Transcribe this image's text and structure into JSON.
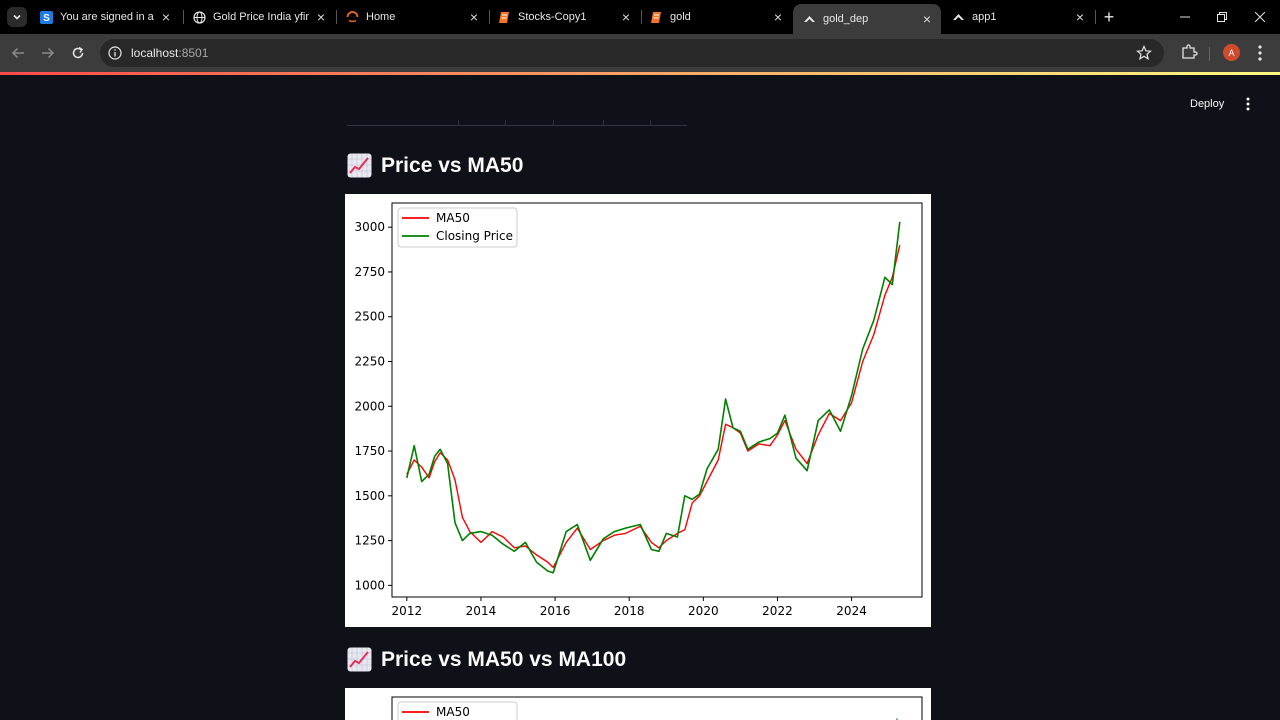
{
  "browser": {
    "tabs": [
      {
        "title": "You are signed in as",
        "favicon": "s-square-icon",
        "active": false
      },
      {
        "title": "Gold Price India yfina",
        "favicon": "globe-icon",
        "active": false
      },
      {
        "title": "Home",
        "favicon": "arc-icon",
        "active": false
      },
      {
        "title": "Stocks-Copy1",
        "favicon": "notebook-icon",
        "active": false
      },
      {
        "title": "gold",
        "favicon": "notebook-icon",
        "active": false
      },
      {
        "title": "gold_dep",
        "favicon": "streamlit-icon",
        "active": true
      },
      {
        "title": "app1",
        "favicon": "streamlit-icon",
        "active": false
      }
    ],
    "url_host": "localhost",
    "url_port": ":8501",
    "profile_initial": "A"
  },
  "app": {
    "deploy_label": "Deploy",
    "sections": [
      {
        "heading": "Price vs MA50"
      },
      {
        "heading": "Price vs MA50 vs MA100"
      }
    ]
  },
  "chart_data": [
    {
      "type": "line",
      "title": "",
      "xlabel": "",
      "ylabel": "",
      "xlim": [
        2011.6,
        2025.9
      ],
      "ylim": [
        935,
        3135
      ],
      "xticks": [
        "2012",
        "2014",
        "2016",
        "2018",
        "2020",
        "2022",
        "2024"
      ],
      "yticks": [
        "1000",
        "1250",
        "1500",
        "1750",
        "2000",
        "2250",
        "2500",
        "2750",
        "3000"
      ],
      "legend": "upper-left",
      "x": [
        2012.0,
        2012.2,
        2012.4,
        2012.6,
        2012.75,
        2012.9,
        2013.1,
        2013.3,
        2013.5,
        2013.7,
        2014.0,
        2014.3,
        2014.6,
        2014.9,
        2015.2,
        2015.5,
        2015.8,
        2015.95,
        2016.3,
        2016.6,
        2016.95,
        2017.3,
        2017.6,
        2017.9,
        2018.3,
        2018.6,
        2018.8,
        2019.0,
        2019.3,
        2019.5,
        2019.7,
        2019.9,
        2020.1,
        2020.4,
        2020.6,
        2020.8,
        2021.0,
        2021.2,
        2021.5,
        2021.8,
        2022.0,
        2022.2,
        2022.5,
        2022.8,
        2023.1,
        2023.4,
        2023.7,
        2024.0,
        2024.3,
        2024.6,
        2024.9,
        2025.1,
        2025.3
      ],
      "series": [
        {
          "name": "MA50",
          "color": "#ff0000",
          "values": [
            1620,
            1700,
            1660,
            1600,
            1690,
            1740,
            1700,
            1590,
            1380,
            1300,
            1240,
            1300,
            1270,
            1210,
            1220,
            1170,
            1130,
            1100,
            1240,
            1320,
            1200,
            1250,
            1280,
            1290,
            1330,
            1240,
            1210,
            1250,
            1290,
            1310,
            1460,
            1500,
            1580,
            1700,
            1900,
            1880,
            1850,
            1750,
            1790,
            1780,
            1840,
            1920,
            1760,
            1680,
            1840,
            1960,
            1920,
            2020,
            2250,
            2400,
            2620,
            2720,
            2900
          ]
        },
        {
          "name": "Closing Price",
          "color": "#008000",
          "values": [
            1600,
            1780,
            1580,
            1620,
            1720,
            1760,
            1680,
            1350,
            1250,
            1290,
            1300,
            1280,
            1230,
            1190,
            1240,
            1130,
            1080,
            1070,
            1300,
            1340,
            1140,
            1260,
            1300,
            1320,
            1340,
            1200,
            1190,
            1290,
            1270,
            1500,
            1480,
            1510,
            1650,
            1760,
            2040,
            1880,
            1860,
            1760,
            1800,
            1820,
            1850,
            1950,
            1710,
            1640,
            1920,
            1980,
            1860,
            2060,
            2320,
            2480,
            2720,
            2680,
            3030
          ]
        }
      ]
    },
    {
      "type": "line",
      "title": "",
      "xlabel": "",
      "ylabel": "",
      "legend": "upper-left",
      "series": [
        {
          "name": "MA50",
          "color": "#ff0000"
        }
      ]
    }
  ]
}
